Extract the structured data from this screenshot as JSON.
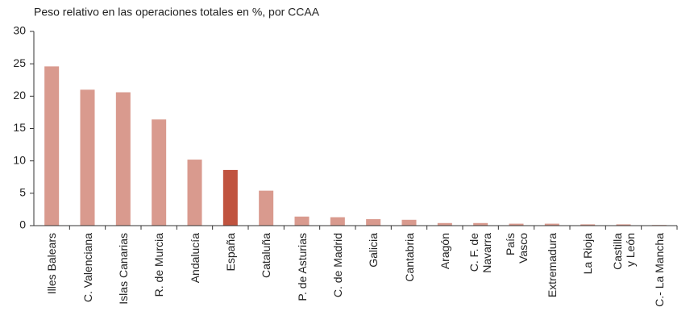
{
  "chart_data": {
    "type": "bar",
    "title": "Peso relativo en las operaciones totales en %, por CCAA",
    "categories": [
      "Illes Balears",
      "C. Valenciana",
      "Islas Canarias",
      "R. de Murcia",
      "Andalucía",
      "España",
      "Cataluña",
      "P. de Asturias",
      "C. de Madrid",
      "Galicia",
      "Cantabria",
      "Aragón",
      "C. F. de\nNavarra",
      "País\nVasco",
      "Extremadura",
      "La Rioja",
      "Castilla\ny León",
      "C.- La Mancha"
    ],
    "values": [
      24.6,
      21.0,
      20.6,
      16.4,
      10.2,
      8.6,
      5.4,
      1.4,
      1.3,
      1.0,
      0.9,
      0.4,
      0.4,
      0.3,
      0.3,
      0.2,
      0.2,
      0.1
    ],
    "colors": [
      "#d99a8e",
      "#d99a8e",
      "#d99a8e",
      "#d99a8e",
      "#d99a8e",
      "#c0533f",
      "#d99a8e",
      "#d99a8e",
      "#d99a8e",
      "#d99a8e",
      "#d99a8e",
      "#d99a8e",
      "#d99a8e",
      "#d99a8e",
      "#d99a8e",
      "#d99a8e",
      "#d99a8e",
      "#d99a8e"
    ],
    "ylim": [
      0,
      30
    ],
    "yticks": [
      0,
      5,
      10,
      15,
      20,
      25,
      30
    ],
    "grid": false
  }
}
